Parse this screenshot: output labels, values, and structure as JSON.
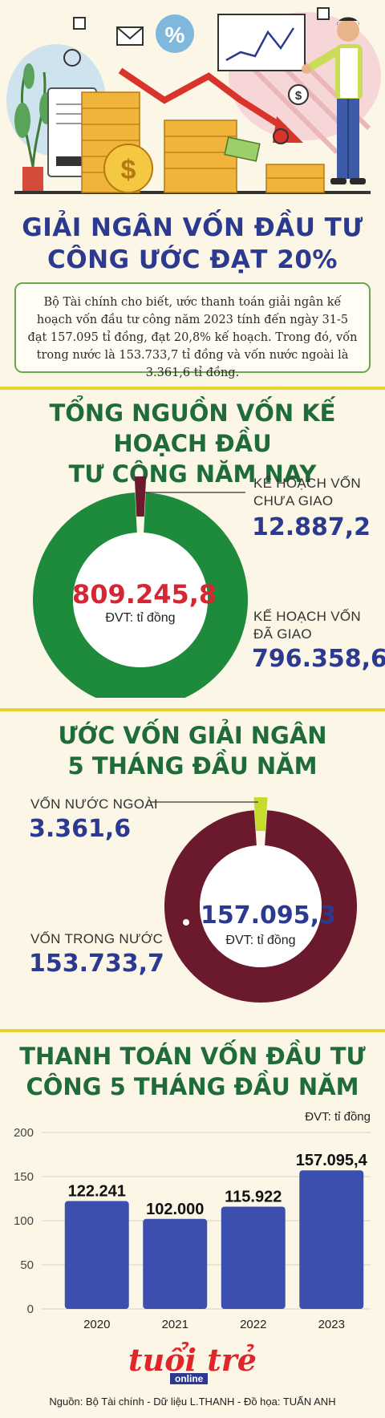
{
  "title_lines": [
    "GIẢI NGÂN VỐN ĐẦU TƯ",
    "CÔNG ƯỚC ĐẠT 20%"
  ],
  "intro": "Bộ Tài chính cho biết, ước thanh toán giải ngân kế hoạch vốn đầu tư công năm 2023 tính đến ngày 31-5 đạt 157.095 tỉ đồng, đạt 20,8% kế hoạch. Trong đó, vốn trong nước là 153.733,7 tỉ đồng và vốn nước ngoài là 3.361,6 tỉ đồng.",
  "unit": "ĐVT: tỉ đồng",
  "colors": {
    "title_blue": "#2b3a8f",
    "section_green": "#1f6b3a",
    "donut_green": "#1e8a3c",
    "donut_maroon": "#6b1a2e",
    "donut_lime": "#c5dc2e",
    "bar_blue": "#3c4fae",
    "total_red": "#d62631",
    "divider_yellow": "#e8d32f"
  },
  "chart_data": [
    {
      "type": "pie",
      "title_lines": [
        "TỔNG NGUỒN VỐN KẾ HOẠCH ĐẦU",
        "TƯ CÔNG NĂM NAY"
      ],
      "total": "809.245,8",
      "slices": [
        {
          "label_lines": [
            "KẾ HOẠCH VỐN",
            "CHƯA GIAO"
          ],
          "value": 12887.2,
          "display": "12.887,2"
        },
        {
          "label_lines": [
            "KẾ HOẠCH VỐN",
            "ĐÃ GIAO"
          ],
          "value": 796358.6,
          "display": "796.358,6"
        }
      ]
    },
    {
      "type": "pie",
      "title_lines": [
        "ƯỚC VỐN GIẢI NGÂN",
        "5 THÁNG ĐẦU NĂM"
      ],
      "total": "157.095,3",
      "slices": [
        {
          "label": "VỐN NƯỚC NGOÀI",
          "value": 3361.6,
          "display": "3.361,6"
        },
        {
          "label": "VỐN TRONG NƯỚC",
          "value": 153733.7,
          "display": "153.733,7"
        }
      ]
    },
    {
      "type": "bar",
      "title_lines": [
        "THANH TOÁN VỐN ĐẦU TƯ",
        "CÔNG 5 THÁNG ĐẦU NĂM"
      ],
      "categories": [
        "2020",
        "2021",
        "2022",
        "2023"
      ],
      "values": [
        122.241,
        102.0,
        115.922,
        157.0954
      ],
      "labels": [
        "122.241",
        "102.000",
        "115.922",
        "157.095,4"
      ],
      "yticks": [
        0,
        50,
        100,
        150,
        200
      ],
      "ylim": [
        0,
        200
      ]
    }
  ],
  "logo": {
    "main": "tuổi trẻ",
    "sub": "online"
  },
  "source": "Nguồn: Bộ Tài chính - Dữ liệu L.THANH - Đồ họa: TUẤN ANH"
}
